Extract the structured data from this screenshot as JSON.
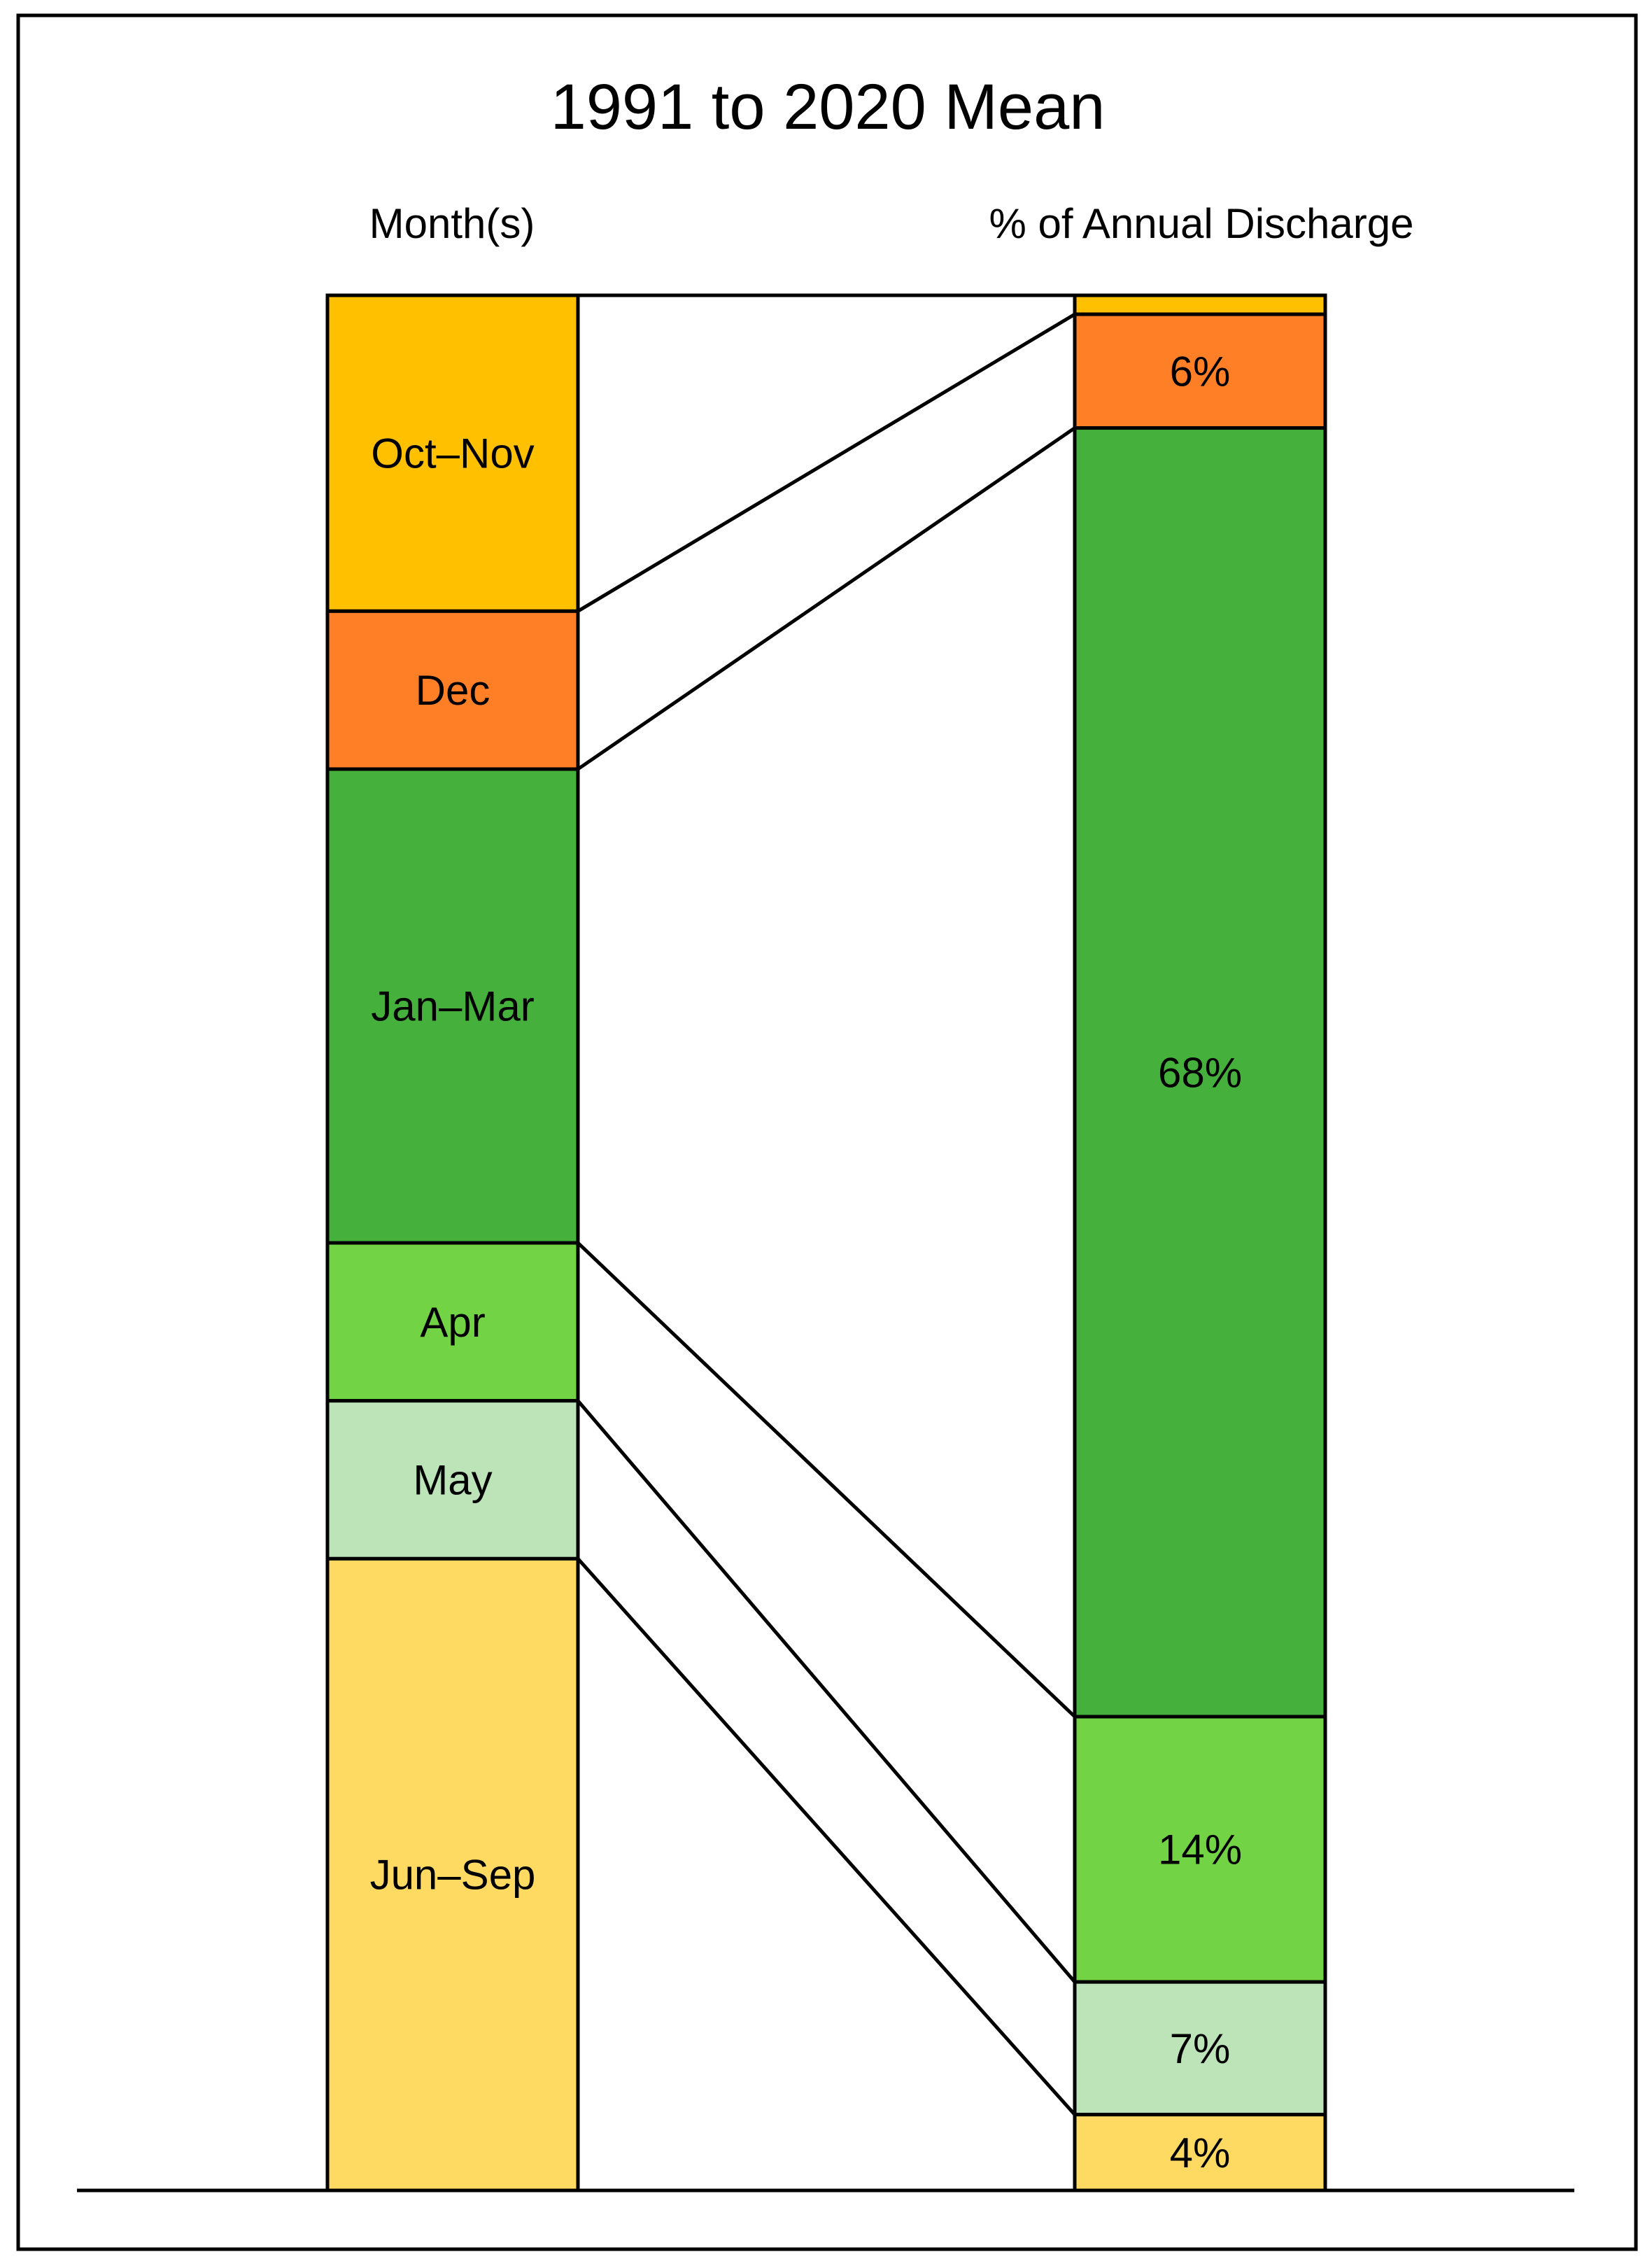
{
  "chart_data": {
    "type": "bar",
    "title": "1991 to 2020 Mean",
    "left_column_label": "Month(s)",
    "right_column_label": "% of Annual Discharge",
    "categories": [
      "Oct–Nov",
      "Dec",
      "Jan–Mar",
      "Apr",
      "May",
      "Jun–Sep"
    ],
    "month_counts": [
      2,
      1,
      3,
      1,
      1,
      4
    ],
    "values": [
      1,
      6,
      68,
      14,
      7,
      4
    ],
    "value_labels": [
      "",
      "6%",
      "68%",
      "14%",
      "7%",
      "4%"
    ],
    "colors": [
      "#FFC000",
      "#FF7F27",
      "#45B03C",
      "#72D444",
      "#BDE3B9",
      "#FFDA62"
    ],
    "unit": "%"
  }
}
